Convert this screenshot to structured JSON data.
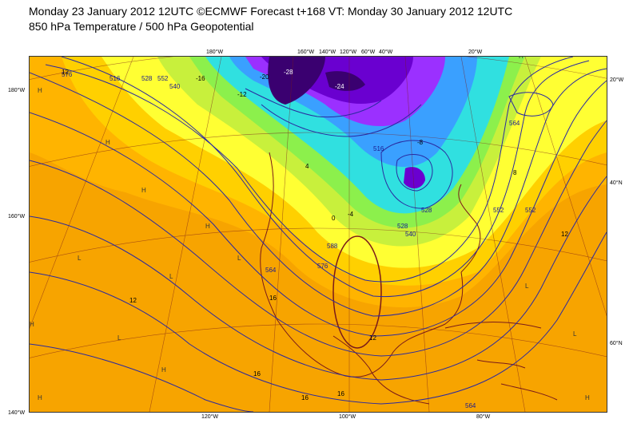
{
  "header": {
    "line1": "Monday 23 January 2012 12UTC ©ECMWF Forecast t+168 VT: Monday 30 January 2012 12UTC",
    "line2": "850 hPa Temperature / 500 hPa Geopotential"
  },
  "map": {
    "top_lon_labels": [
      "180°W",
      "160°W",
      "140°W",
      "120°W",
      "60°W",
      "40°W",
      "20°W"
    ],
    "bottom_lon_labels": [
      "120°W",
      "100°W",
      "80°W"
    ],
    "left_lat_labels": [
      "180°W",
      "160°W",
      "140°W"
    ],
    "right_lat_labels": [
      "20°W",
      "40°N",
      "60°N"
    ],
    "geopotential_labels": [
      "516",
      "552",
      "540",
      "528",
      "564",
      "516",
      "528",
      "552",
      "564",
      "576",
      "588",
      "528",
      "540",
      "552",
      "564",
      "576"
    ],
    "temperature_labels": [
      "12",
      "12",
      "16",
      "16",
      "16",
      "16",
      "12",
      "12",
      "8",
      "4",
      "0",
      "-4",
      "-8",
      "-12",
      "-16",
      "-20",
      "-24",
      "-28"
    ],
    "pressure_centers": [
      "H",
      "H",
      "H",
      "H",
      "L",
      "L",
      "L",
      "H",
      "L",
      "H",
      "L",
      "H",
      "H",
      "L",
      "H"
    ],
    "colors": {
      "warm_orange": "#f7a400",
      "orange": "#ffb400",
      "amber": "#ffd000",
      "yellow": "#ffff33",
      "yellow_green": "#c8f03c",
      "green": "#8cf04c",
      "cyan": "#30e0e0",
      "blue": "#3aa0ff",
      "purple": "#9b30ff",
      "violet": "#6a00d0",
      "dark_violet": "#3a0070",
      "contour": "#2a2aa0",
      "coast": "#7a1a1a"
    }
  }
}
